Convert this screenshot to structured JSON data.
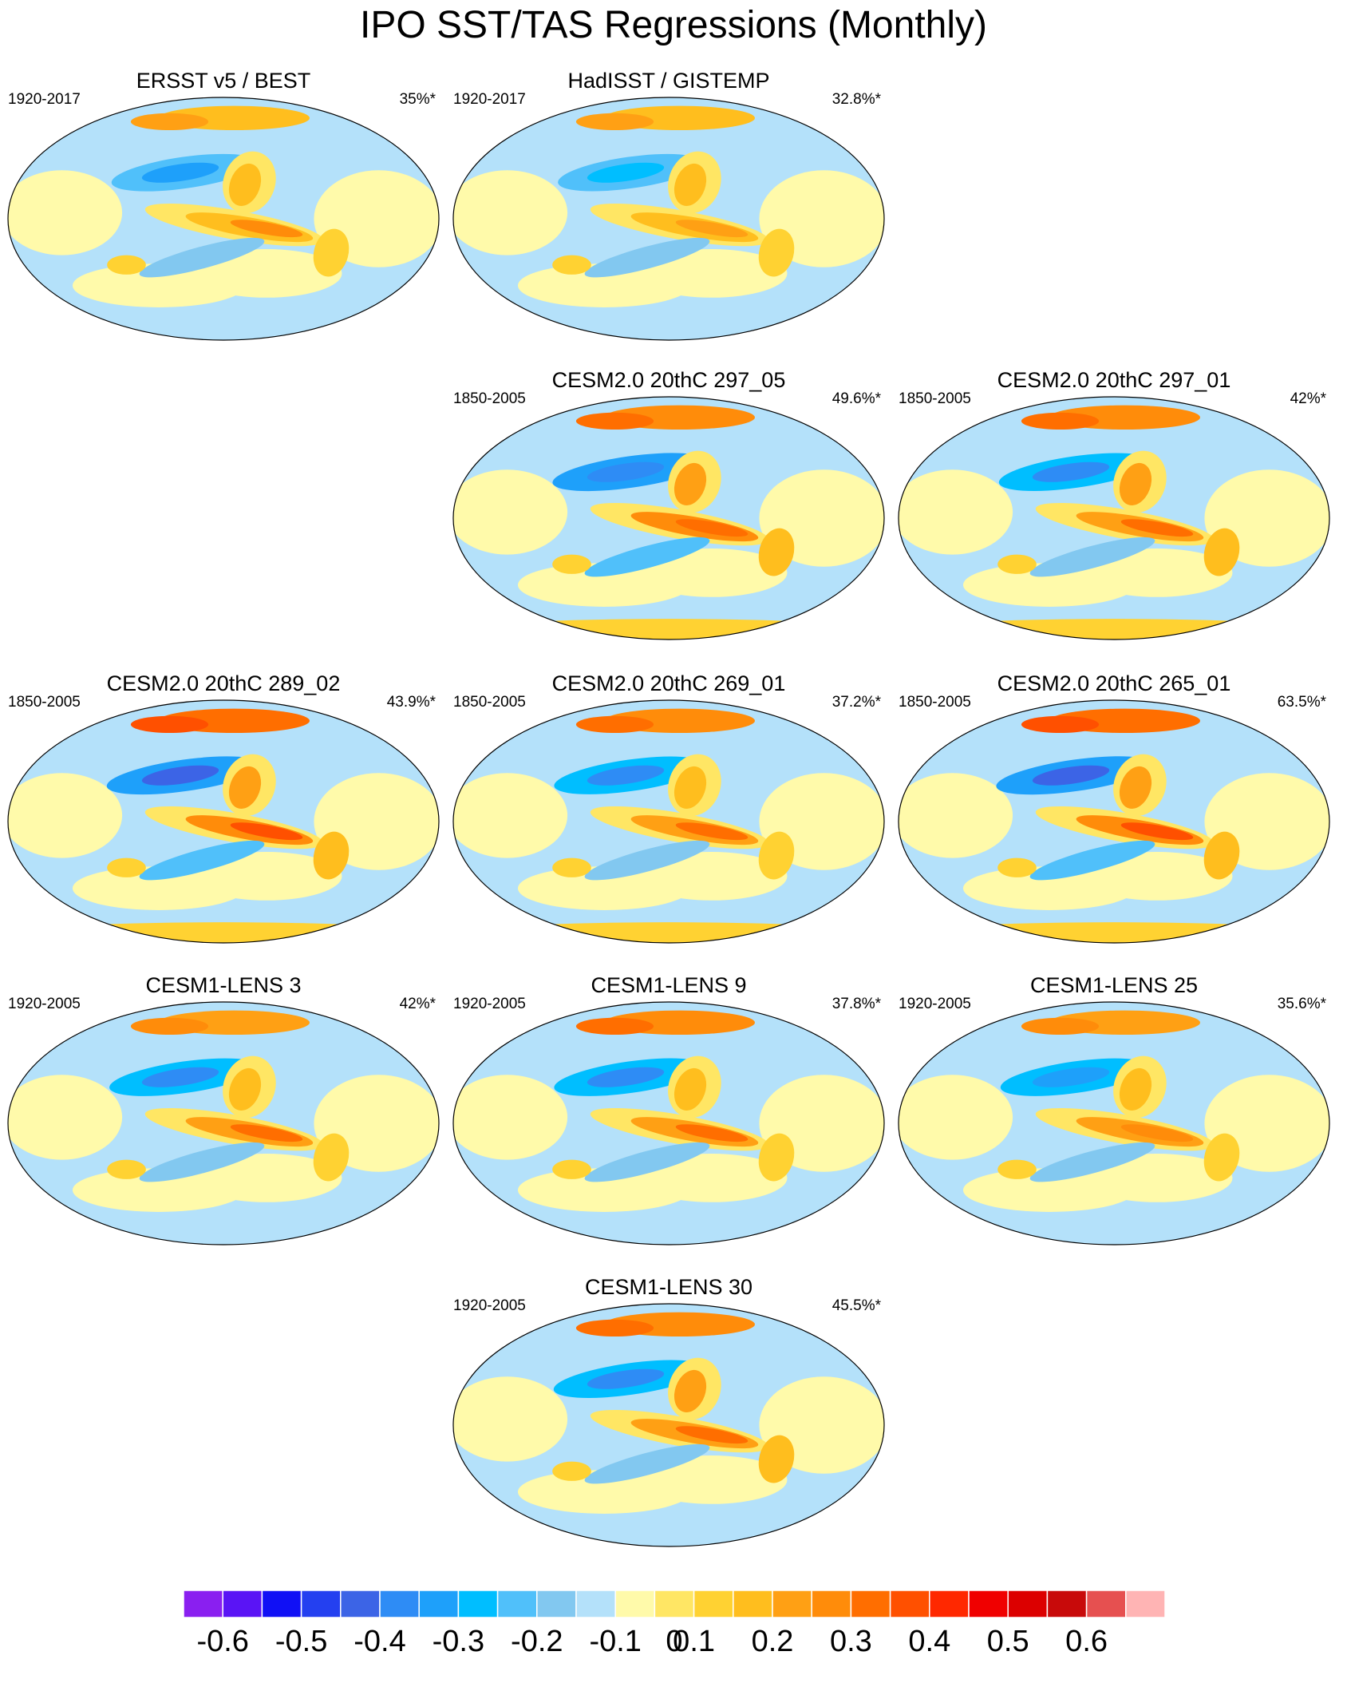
{
  "title": "IPO SST/TAS Regressions (Monthly)",
  "chart_data": {
    "type": "heatmap",
    "title": "IPO SST/TAS Regressions (Monthly)",
    "panels": [
      {
        "title": "ERSST v5 / BEST",
        "period": "1920-2017",
        "percent": "35%*",
        "style": "obs",
        "strength": 0.45
      },
      {
        "title": "HadISST / GISTEMP",
        "period": "1920-2017",
        "percent": "32.8%*",
        "style": "obs",
        "strength": 0.35
      },
      {
        "title": "CESM2.0 20thC 297_05",
        "period": "1850-2005",
        "percent": "49.6%*",
        "style": "model",
        "strength": 0.85
      },
      {
        "title": "CESM2.0 20thC 297_01",
        "period": "1850-2005",
        "percent": "42%*",
        "style": "model",
        "strength": 0.75
      },
      {
        "title": "CESM2.0 20thC 289_02",
        "period": "1850-2005",
        "percent": "43.9%*",
        "style": "model",
        "strength": 0.9
      },
      {
        "title": "CESM2.0 20thC 269_01",
        "period": "1850-2005",
        "percent": "37.2%*",
        "style": "model",
        "strength": 0.7
      },
      {
        "title": "CESM2.0 20thC 265_01",
        "period": "1850-2005",
        "percent": "63.5%*",
        "style": "model",
        "strength": 1.0
      },
      {
        "title": "CESM1-LENS 3",
        "period": "1920-2005",
        "percent": "42%*",
        "style": "lens",
        "strength": 0.65
      },
      {
        "title": "CESM1-LENS 9",
        "period": "1920-2005",
        "percent": "37.8%*",
        "style": "lens",
        "strength": 0.7
      },
      {
        "title": "CESM1-LENS 25",
        "period": "1920-2005",
        "percent": "35.6%*",
        "style": "lens",
        "strength": 0.6
      },
      {
        "title": "CESM1-LENS 30",
        "period": "1920-2005",
        "percent": "45.5%*",
        "style": "lens",
        "strength": 0.75
      }
    ],
    "colorbar": {
      "labels": [
        "-0.6",
        "-0.5",
        "-0.4",
        "-0.3",
        "-0.2",
        "-0.1",
        "0",
        "0.1",
        "0.2",
        "0.3",
        "0.4",
        "0.5",
        "0.6"
      ],
      "colors": [
        "#8a1ff0",
        "#5a14f5",
        "#1010f5",
        "#2440f0",
        "#3c64e6",
        "#2e8cf5",
        "#1ea0fa",
        "#00beff",
        "#50c0fa",
        "#82c8f0",
        "#b4e1fa",
        "#fffaaa",
        "#ffe664",
        "#ffd232",
        "#ffbe1e",
        "#ffa014",
        "#ff8c0a",
        "#ff6e00",
        "#ff5000",
        "#ff2800",
        "#f00000",
        "#dc0000",
        "#c80a0a",
        "#e65050",
        "#ffb4b4"
      ]
    }
  }
}
